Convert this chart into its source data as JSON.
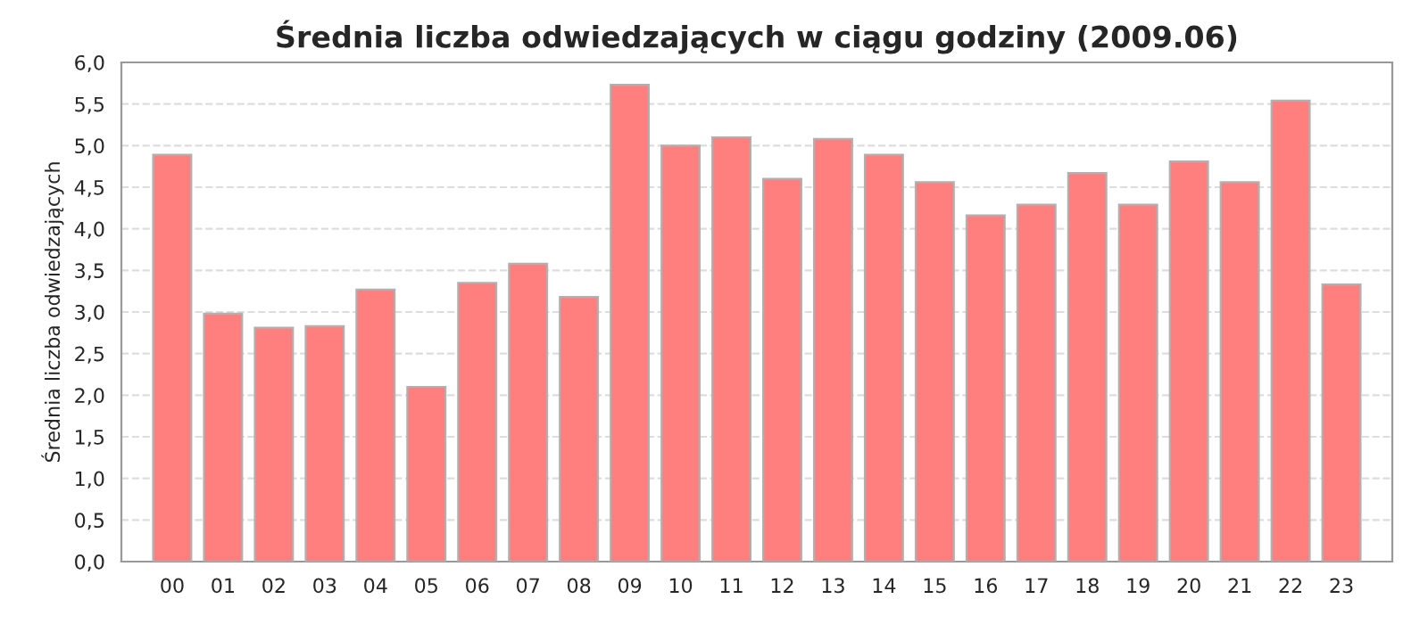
{
  "chart_data": {
    "type": "bar",
    "title": "Średnia liczba odwiedzających w ciągu godziny (2009.06)",
    "ylabel": "Średnia liczba odwiedzających",
    "categories": [
      "00",
      "01",
      "02",
      "03",
      "04",
      "05",
      "06",
      "07",
      "08",
      "09",
      "10",
      "11",
      "12",
      "13",
      "14",
      "15",
      "16",
      "17",
      "18",
      "19",
      "20",
      "21",
      "22",
      "23"
    ],
    "values": [
      4.89,
      2.98,
      2.81,
      2.83,
      3.27,
      2.1,
      3.35,
      3.58,
      3.18,
      5.73,
      5.0,
      5.1,
      4.6,
      5.08,
      4.89,
      4.56,
      4.16,
      4.29,
      4.67,
      4.29,
      4.81,
      4.56,
      5.54,
      3.33
    ],
    "color": "#ff7f7f",
    "ylim": [
      0,
      6
    ],
    "yticks": [
      {
        "value": 0,
        "label": "0,0"
      },
      {
        "value": 0.5,
        "label": "0,5"
      },
      {
        "value": 1,
        "label": "1,0"
      },
      {
        "value": 1.5,
        "label": "1,5"
      },
      {
        "value": 2,
        "label": "2,0"
      },
      {
        "value": 2.5,
        "label": "2,5"
      },
      {
        "value": 3,
        "label": "3,0"
      },
      {
        "value": 3.5,
        "label": "3,5"
      },
      {
        "value": 4,
        "label": "4,0"
      },
      {
        "value": 4.5,
        "label": "4,5"
      },
      {
        "value": 5,
        "label": "5,0"
      },
      {
        "value": 5.5,
        "label": "5,5"
      },
      {
        "value": 6,
        "label": "6,0"
      }
    ],
    "grid": "y"
  }
}
